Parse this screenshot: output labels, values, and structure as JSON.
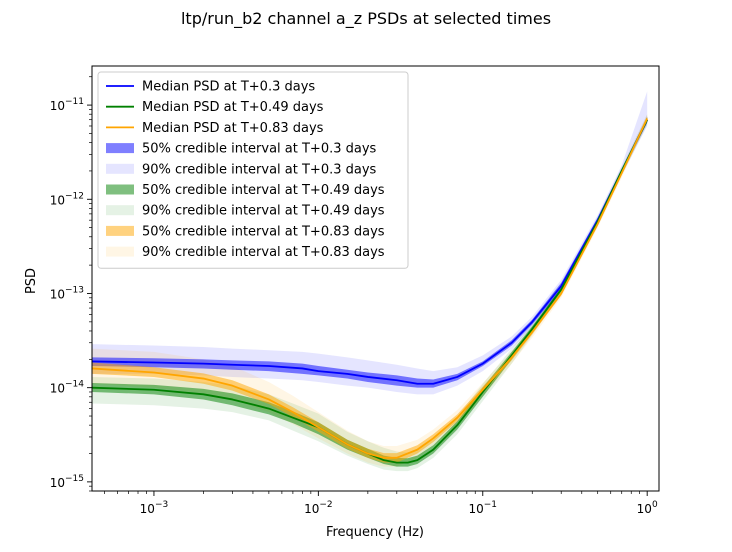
{
  "chart_data": {
    "type": "line",
    "title": "ltp/run_b2 channel a_z PSDs at selected times",
    "xlabel": "Frequency (Hz)",
    "ylabel": "PSD",
    "xscale": "log",
    "yscale": "log",
    "xlim": [
      0.00042,
      1.18
    ],
    "ylim": [
      8e-16,
      2.6e-11
    ],
    "grid": false,
    "legend_position": "upper-left",
    "x_ticks": [
      {
        "value": 0.001,
        "base": "10",
        "exp": "−3"
      },
      {
        "value": 0.01,
        "base": "10",
        "exp": "−2"
      },
      {
        "value": 0.1,
        "base": "10",
        "exp": "−1"
      },
      {
        "value": 1,
        "base": "10",
        "exp": "0"
      }
    ],
    "y_ticks": [
      {
        "value": 1e-15,
        "base": "10",
        "exp": "−15"
      },
      {
        "value": 1e-14,
        "base": "10",
        "exp": "−14"
      },
      {
        "value": 1e-13,
        "base": "10",
        "exp": "−13"
      },
      {
        "value": 1e-12,
        "base": "10",
        "exp": "−12"
      },
      {
        "value": 1e-11,
        "base": "10",
        "exp": "−11"
      }
    ],
    "series": [
      {
        "name": "Median PSD at T+0.3 days",
        "color": "#0000ff",
        "band50_label": "50% credible interval at T+0.3 days",
        "band90_label": "90% credible interval at T+0.3 days",
        "band50_opacity": 0.5,
        "band90_opacity": 0.1,
        "x": [
          0.00042,
          0.001,
          0.002,
          0.003,
          0.005,
          0.008,
          0.01,
          0.015,
          0.02,
          0.03,
          0.04,
          0.05,
          0.07,
          0.1,
          0.15,
          0.2,
          0.3,
          0.5,
          0.7,
          1.0
        ],
        "median": [
          1.9e-14,
          1.85e-14,
          1.8e-14,
          1.75e-14,
          1.7e-14,
          1.6e-14,
          1.5e-14,
          1.4e-14,
          1.3e-14,
          1.2e-14,
          1.1e-14,
          1.1e-14,
          1.3e-14,
          1.8e-14,
          3e-14,
          5e-14,
          1.2e-13,
          6e-13,
          2e-12,
          7e-12
        ],
        "lo50": [
          1.7e-14,
          1.65e-14,
          1.6e-14,
          1.55e-14,
          1.5e-14,
          1.4e-14,
          1.35e-14,
          1.25e-14,
          1.15e-14,
          1.05e-14,
          1e-14,
          1e-14,
          1.2e-14,
          1.7e-14,
          2.8e-14,
          4.7e-14,
          1.1e-13,
          5.6e-13,
          1.9e-12,
          6.5e-12
        ],
        "hi50": [
          2.1e-14,
          2.05e-14,
          2e-14,
          1.95e-14,
          1.9e-14,
          1.8e-14,
          1.7e-14,
          1.55e-14,
          1.45e-14,
          1.35e-14,
          1.25e-14,
          1.22e-14,
          1.4e-14,
          1.9e-14,
          3.2e-14,
          5.3e-14,
          1.3e-13,
          6.4e-13,
          2.1e-12,
          7.5e-12
        ],
        "lo90": [
          1.4e-14,
          1.4e-14,
          1.35e-14,
          1.3e-14,
          1.25e-14,
          1.2e-14,
          1.15e-14,
          1.05e-14,
          1e-14,
          9e-15,
          8.5e-15,
          8.5e-15,
          1.05e-14,
          1.5e-14,
          2.6e-14,
          4.4e-14,
          1.05e-13,
          5.2e-13,
          1.8e-12,
          6e-12
        ],
        "hi90": [
          2.9e-14,
          2.8e-14,
          2.7e-14,
          2.6e-14,
          2.5e-14,
          2.4e-14,
          2.3e-14,
          2.1e-14,
          1.95e-14,
          1.75e-14,
          1.6e-14,
          1.5e-14,
          1.65e-14,
          2.2e-14,
          3.5e-14,
          5.7e-14,
          1.4e-13,
          6.8e-13,
          2.3e-12,
          1.4e-11
        ]
      },
      {
        "name": "Median PSD at T+0.49 days",
        "color": "#008000",
        "band50_label": "50% credible interval at T+0.49 days",
        "band90_label": "90% credible interval at T+0.49 days",
        "band50_opacity": 0.5,
        "band90_opacity": 0.1,
        "x": [
          0.00042,
          0.001,
          0.002,
          0.003,
          0.005,
          0.007,
          0.01,
          0.015,
          0.02,
          0.025,
          0.03,
          0.035,
          0.04,
          0.05,
          0.07,
          0.1,
          0.15,
          0.2,
          0.3,
          0.5,
          0.7,
          1.0
        ],
        "median": [
          1e-14,
          9.5e-15,
          8.5e-15,
          7.5e-15,
          6e-15,
          4.8e-15,
          3.8e-15,
          2.5e-15,
          2e-15,
          1.7e-15,
          1.6e-15,
          1.6e-15,
          1.7e-15,
          2.2e-15,
          4e-15,
          9e-15,
          2.2e-14,
          4.2e-14,
          1.1e-13,
          5.8e-13,
          2e-12,
          7e-12
        ],
        "lo50": [
          9e-15,
          8.5e-15,
          7.5e-15,
          6.5e-15,
          5.2e-15,
          4.2e-15,
          3.2e-15,
          2.2e-15,
          1.8e-15,
          1.55e-15,
          1.45e-15,
          1.45e-15,
          1.55e-15,
          2e-15,
          3.6e-15,
          8e-15,
          2e-14,
          3.9e-14,
          1.05e-13,
          5.5e-13,
          1.9e-12,
          6.6e-12
        ],
        "hi50": [
          1.12e-14,
          1.07e-14,
          9.7e-15,
          8.7e-15,
          7e-15,
          5.6e-15,
          4.3e-15,
          2.8e-15,
          2.25e-15,
          1.9e-15,
          1.8e-15,
          1.78e-15,
          1.9e-15,
          2.45e-15,
          4.4e-15,
          1e-14,
          2.4e-14,
          4.5e-14,
          1.15e-13,
          6.1e-13,
          2.1e-12,
          7.4e-12
        ],
        "lo90": [
          6.8e-15,
          6.5e-15,
          6e-15,
          5.5e-15,
          4.5e-15,
          3.5e-15,
          2.7e-15,
          1.9e-15,
          1.55e-15,
          1.35e-15,
          1.3e-15,
          1.3e-15,
          1.4e-15,
          1.8e-15,
          3.2e-15,
          7.2e-15,
          1.8e-14,
          3.6e-14,
          1e-13,
          5.2e-13,
          1.8e-12,
          6.2e-12
        ],
        "hi90": [
          1.3e-14,
          1.25e-14,
          1.15e-14,
          1.05e-14,
          8.5e-15,
          6.8e-15,
          5.3e-15,
          3.4e-15,
          2.7e-15,
          2.3e-15,
          2.1e-15,
          2.05e-15,
          2.2e-15,
          2.8e-15,
          4.9e-15,
          1.1e-14,
          2.6e-14,
          4.8e-14,
          1.2e-13,
          6.5e-13,
          2.2e-12,
          8e-12
        ]
      },
      {
        "name": "Median PSD at T+0.83 days",
        "color": "#ffa500",
        "band50_label": "50% credible interval at T+0.83 days",
        "band90_label": "90% credible interval at T+0.83 days",
        "band50_opacity": 0.5,
        "band90_opacity": 0.1,
        "x": [
          0.00042,
          0.001,
          0.002,
          0.003,
          0.005,
          0.007,
          0.01,
          0.015,
          0.02,
          0.025,
          0.03,
          0.04,
          0.05,
          0.07,
          0.1,
          0.15,
          0.2,
          0.3,
          0.5,
          0.7,
          1.0
        ],
        "median": [
          1.6e-14,
          1.45e-14,
          1.25e-14,
          1.05e-14,
          7.5e-15,
          5.5e-15,
          3.8e-15,
          2.5e-15,
          2e-15,
          1.8e-15,
          1.8e-15,
          2.2e-15,
          2.9e-15,
          4.8e-15,
          9.5e-15,
          2.1e-14,
          3.9e-14,
          1e-13,
          5.5e-13,
          1.9e-12,
          7.2e-12
        ],
        "lo50": [
          1.4e-14,
          1.3e-14,
          1.1e-14,
          9.3e-15,
          6.7e-15,
          4.9e-15,
          3.4e-15,
          2.25e-15,
          1.8e-15,
          1.6e-15,
          1.6e-15,
          2e-15,
          2.65e-15,
          4.4e-15,
          8.8e-15,
          1.95e-14,
          3.7e-14,
          9.5e-14,
          5.2e-13,
          1.8e-12,
          6.8e-12
        ],
        "hi50": [
          1.85e-14,
          1.65e-14,
          1.42e-14,
          1.2e-14,
          8.5e-15,
          6.2e-15,
          4.3e-15,
          2.8e-15,
          2.25e-15,
          2.02e-15,
          2.02e-15,
          2.45e-15,
          3.2e-15,
          5.2e-15,
          1.03e-14,
          2.25e-14,
          4.1e-14,
          1.05e-13,
          5.8e-13,
          2e-12,
          7.6e-12
        ],
        "lo90": [
          1.1e-14,
          1e-14,
          8.7e-15,
          7.5e-15,
          5.5e-15,
          4.1e-15,
          2.9e-15,
          2e-15,
          1.6e-15,
          1.45e-15,
          1.45e-15,
          1.8e-15,
          2.4e-15,
          4e-15,
          8e-15,
          1.8e-14,
          3.4e-14,
          9e-14,
          5e-13,
          1.7e-12,
          6.4e-12
        ],
        "hi90": [
          2.6e-14,
          2.4e-14,
          2e-14,
          1.7e-14,
          1.15e-14,
          8.2e-15,
          5.5e-15,
          3.5e-15,
          2.7e-15,
          2.4e-15,
          2.4e-15,
          2.8e-15,
          3.6e-15,
          5.8e-15,
          1.12e-14,
          2.45e-14,
          4.4e-14,
          1.12e-13,
          6.1e-13,
          2.1e-12,
          8e-12
        ]
      }
    ]
  }
}
